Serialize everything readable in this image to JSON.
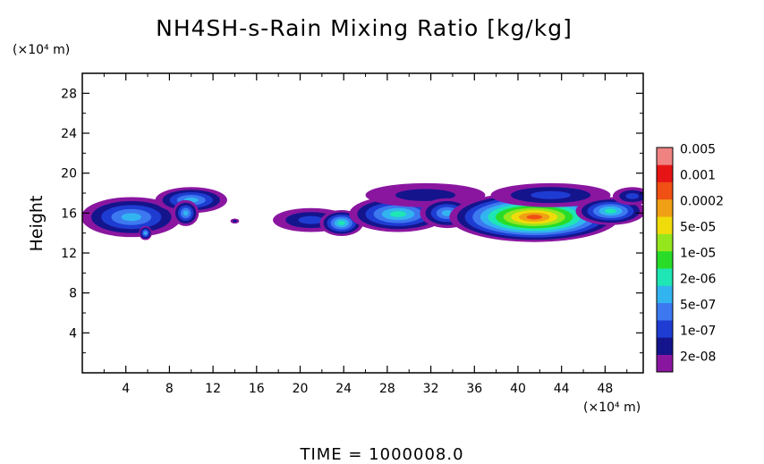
{
  "chart_data": {
    "type": "heatmap",
    "title": "NH4SH-s-Rain Mixing Ratio [kg/kg]",
    "ylabel": "Height",
    "y_unit_label": "(×10⁴ m)",
    "x_unit_label": "(×10⁴ m)",
    "xlim": [
      0,
      51.5
    ],
    "ylim": [
      0,
      30
    ],
    "x_ticks": [
      "4",
      "8",
      "12",
      "16",
      "20",
      "24",
      "28",
      "32",
      "36",
      "40",
      "44",
      "48"
    ],
    "y_ticks": [
      "4",
      "8",
      "12",
      "16",
      "20",
      "24",
      "28"
    ],
    "colorbar": {
      "colors": [
        "#8a16a0",
        "#14148c",
        "#1e3cd2",
        "#3c78f0",
        "#32b4f0",
        "#1ee6b4",
        "#28dc28",
        "#96e61e",
        "#f0dc0a",
        "#f0a014",
        "#f05014",
        "#e61414",
        "#f08282"
      ],
      "labels": [
        "2e-08",
        "1e-07",
        "5e-07",
        "2e-06",
        "1e-05",
        "5e-05",
        "0.0002",
        "0.001",
        "0.005"
      ]
    },
    "blobs": [
      {
        "cx": 4.5,
        "cy": 15.6,
        "rx": 4.6,
        "ry": 2.0,
        "levels": 5
      },
      {
        "cx": 5.8,
        "cy": 14.0,
        "rx": 0.6,
        "ry": 0.7,
        "levels": 5
      },
      {
        "cx": 10.0,
        "cy": 17.3,
        "rx": 3.3,
        "ry": 1.3,
        "levels": 5
      },
      {
        "cx": 9.5,
        "cy": 16.0,
        "rx": 1.2,
        "ry": 1.3,
        "levels": 5
      },
      {
        "cx": 14.0,
        "cy": 15.2,
        "rx": 0.4,
        "ry": 0.25,
        "levels": 2
      },
      {
        "cx": 21.0,
        "cy": 15.3,
        "rx": 3.5,
        "ry": 1.2,
        "levels": 3
      },
      {
        "cx": 23.8,
        "cy": 15.0,
        "rx": 2.0,
        "ry": 1.3,
        "levels": 6
      },
      {
        "cx": 29.0,
        "cy": 15.9,
        "rx": 4.5,
        "ry": 1.8,
        "levels": 6
      },
      {
        "cx": 31.5,
        "cy": 17.8,
        "rx": 5.5,
        "ry": 1.2,
        "levels": 2
      },
      {
        "cx": 33.5,
        "cy": 16.0,
        "rx": 2.5,
        "ry": 1.5,
        "levels": 5
      },
      {
        "cx": 41.5,
        "cy": 15.6,
        "rx": 7.8,
        "ry": 2.5,
        "levels": 11
      },
      {
        "cx": 43.0,
        "cy": 17.8,
        "rx": 5.5,
        "ry": 1.2,
        "levels": 3
      },
      {
        "cx": 48.5,
        "cy": 16.2,
        "rx": 3.2,
        "ry": 1.4,
        "levels": 6
      },
      {
        "cx": 50.5,
        "cy": 17.7,
        "rx": 1.8,
        "ry": 0.9,
        "levels": 3
      }
    ]
  },
  "footer": {
    "time_label": "TIME = 1000008.0"
  }
}
